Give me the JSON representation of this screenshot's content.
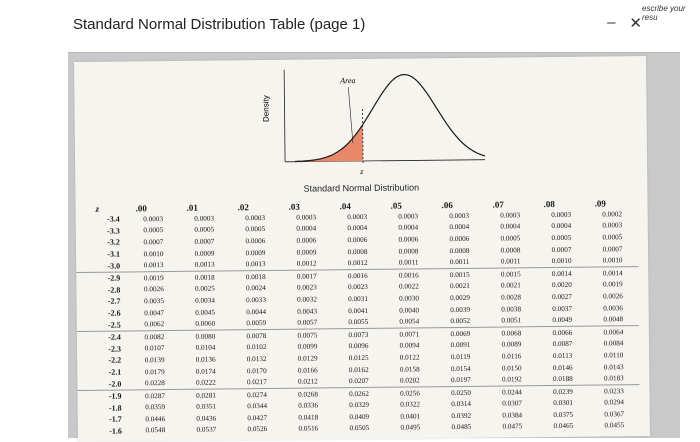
{
  "window": {
    "title": "Standard Normal Distribution Table (page 1)",
    "minimize_glyph": "–",
    "close_glyph": "✕",
    "side_text": "escribe your resu"
  },
  "figure": {
    "ylabel": "Density",
    "area_label": "Area",
    "z_label": "z",
    "caption": "Standard Normal Distribution"
  },
  "table": {
    "z_header": "z",
    "columns": [
      ".00",
      ".01",
      ".02",
      ".03",
      ".04",
      ".05",
      ".06",
      ".07",
      ".08",
      ".09"
    ],
    "rows": [
      {
        "z": "-3.4",
        "v": [
          "0.0003",
          "0.0003",
          "0.0003",
          "0.0003",
          "0.0003",
          "0.0003",
          "0.0003",
          "0.0003",
          "0.0003",
          "0.0002"
        ]
      },
      {
        "z": "-3.3",
        "v": [
          "0.0005",
          "0.0005",
          "0.0005",
          "0.0004",
          "0.0004",
          "0.0004",
          "0.0004",
          "0.0004",
          "0.0004",
          "0.0003"
        ]
      },
      {
        "z": "-3.2",
        "v": [
          "0.0007",
          "0.0007",
          "0.0006",
          "0.0006",
          "0.0006",
          "0.0006",
          "0.0006",
          "0.0005",
          "0.0005",
          "0.0005"
        ]
      },
      {
        "z": "-3.1",
        "v": [
          "0.0010",
          "0.0009",
          "0.0009",
          "0.0009",
          "0.0008",
          "0.0008",
          "0.0008",
          "0.0008",
          "0.0007",
          "0.0007"
        ]
      },
      {
        "z": "-3.0",
        "v": [
          "0.0013",
          "0.0013",
          "0.0013",
          "0.0012",
          "0.0012",
          "0.0011",
          "0.0011",
          "0.0011",
          "0.0010",
          "0.0010"
        ]
      },
      {
        "z": "-2.9",
        "v": [
          "0.0019",
          "0.0018",
          "0.0018",
          "0.0017",
          "0.0016",
          "0.0016",
          "0.0015",
          "0.0015",
          "0.0014",
          "0.0014"
        ]
      },
      {
        "z": "-2.8",
        "v": [
          "0.0026",
          "0.0025",
          "0.0024",
          "0.0023",
          "0.0023",
          "0.0022",
          "0.0021",
          "0.0021",
          "0.0020",
          "0.0019"
        ]
      },
      {
        "z": "-2.7",
        "v": [
          "0.0035",
          "0.0034",
          "0.0033",
          "0.0032",
          "0.0031",
          "0.0030",
          "0.0029",
          "0.0028",
          "0.0027",
          "0.0026"
        ]
      },
      {
        "z": "-2.6",
        "v": [
          "0.0047",
          "0.0045",
          "0.0044",
          "0.0043",
          "0.0041",
          "0.0040",
          "0.0039",
          "0.0038",
          "0.0037",
          "0.0036"
        ]
      },
      {
        "z": "-2.5",
        "v": [
          "0.0062",
          "0.0060",
          "0.0059",
          "0.0057",
          "0.0055",
          "0.0054",
          "0.0052",
          "0.0051",
          "0.0049",
          "0.0048"
        ]
      },
      {
        "z": "-2.4",
        "v": [
          "0.0082",
          "0.0080",
          "0.0078",
          "0.0075",
          "0.0073",
          "0.0071",
          "0.0069",
          "0.0068",
          "0.0066",
          "0.0064"
        ]
      },
      {
        "z": "-2.3",
        "v": [
          "0.0107",
          "0.0104",
          "0.0102",
          "0.0099",
          "0.0096",
          "0.0094",
          "0.0091",
          "0.0089",
          "0.0087",
          "0.0084"
        ]
      },
      {
        "z": "-2.2",
        "v": [
          "0.0139",
          "0.0136",
          "0.0132",
          "0.0129",
          "0.0125",
          "0.0122",
          "0.0119",
          "0.0116",
          "0.0113",
          "0.0110"
        ]
      },
      {
        "z": "-2.1",
        "v": [
          "0.0179",
          "0.0174",
          "0.0170",
          "0.0166",
          "0.0162",
          "0.0158",
          "0.0154",
          "0.0150",
          "0.0146",
          "0.0143"
        ]
      },
      {
        "z": "-2.0",
        "v": [
          "0.0228",
          "0.0222",
          "0.0217",
          "0.0212",
          "0.0207",
          "0.0202",
          "0.0197",
          "0.0192",
          "0.0188",
          "0.0183"
        ]
      },
      {
        "z": "-1.9",
        "v": [
          "0.0287",
          "0.0281",
          "0.0274",
          "0.0268",
          "0.0262",
          "0.0256",
          "0.0250",
          "0.0244",
          "0.0239",
          "0.0233"
        ]
      },
      {
        "z": "-1.8",
        "v": [
          "0.0359",
          "0.0351",
          "0.0344",
          "0.0336",
          "0.0329",
          "0.0322",
          "0.0314",
          "0.0307",
          "0.0301",
          "0.0294"
        ]
      },
      {
        "z": "-1.7",
        "v": [
          "0.0446",
          "0.0436",
          "0.0427",
          "0.0418",
          "0.0409",
          "0.0401",
          "0.0392",
          "0.0384",
          "0.0375",
          "0.0367"
        ]
      },
      {
        "z": "-1.6",
        "v": [
          "0.0548",
          "0.0537",
          "0.0526",
          "0.0516",
          "0.0505",
          "0.0495",
          "0.0485",
          "0.0475",
          "0.0465",
          "0.0455"
        ]
      }
    ]
  },
  "colors": {
    "shade": "#e8876a",
    "curve": "#1a1a1a",
    "page_bg": "#f6f4ef",
    "viewer_bg": "#c9c9c9"
  }
}
